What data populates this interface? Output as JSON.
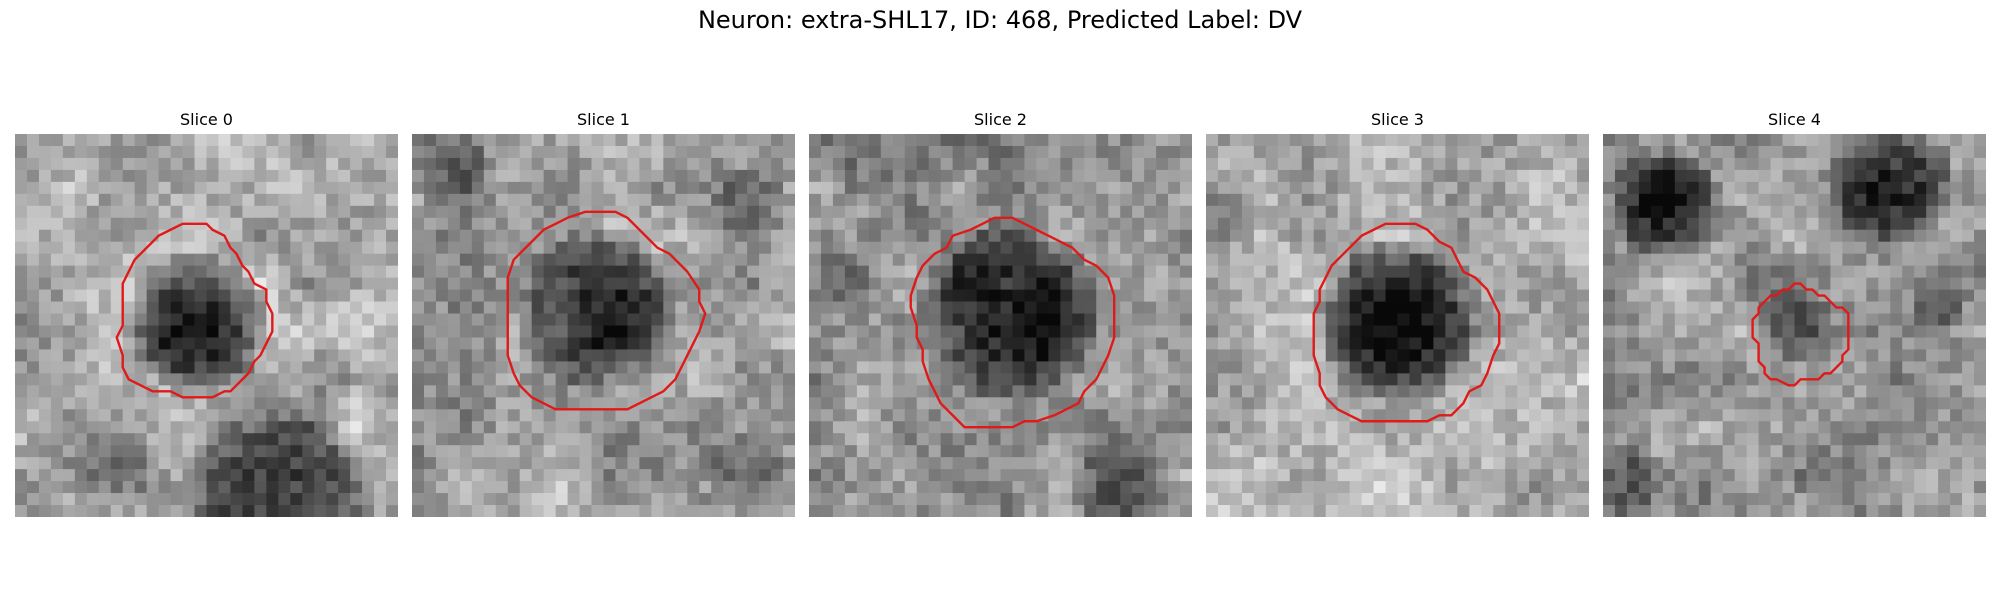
{
  "figure": {
    "title": "Neuron: extra-SHL17, ID: 468, Predicted Label: DV"
  },
  "contour_color": "#e01919",
  "panels": [
    {
      "title": "Slice 0"
    },
    {
      "title": "Slice 1"
    },
    {
      "title": "Slice 2"
    },
    {
      "title": "Slice 3"
    },
    {
      "title": "Slice 4"
    }
  ]
}
